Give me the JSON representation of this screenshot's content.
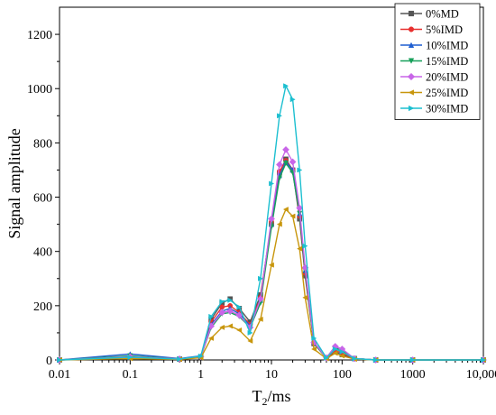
{
  "chart_data": {
    "type": "line",
    "xlabel": "T2/ms",
    "xlabel_parts": {
      "base": "T",
      "sub": "2",
      "rest": "/ms"
    },
    "ylabel": "Signal amplitude",
    "xscale": "log",
    "xlim": [
      0.01,
      10000
    ],
    "ylim": [
      0,
      1300
    ],
    "x_ticks": [
      {
        "value": 0.01,
        "label": "0.01"
      },
      {
        "value": 0.1,
        "label": "0.1"
      },
      {
        "value": 1,
        "label": "1"
      },
      {
        "value": 10,
        "label": "10"
      },
      {
        "value": 100,
        "label": "100"
      },
      {
        "value": 1000,
        "label": "1000"
      },
      {
        "value": 10000,
        "label": "10,000"
      }
    ],
    "y_ticks": [
      0,
      200,
      400,
      600,
      800,
      1000,
      1200
    ],
    "grid": false,
    "legend_position": "top-right",
    "x": [
      0.01,
      0.1,
      0.5,
      1,
      1.4,
      2,
      2.6,
      3.5,
      5,
      7,
      10,
      13,
      16,
      20,
      25,
      30,
      40,
      60,
      80,
      100,
      150,
      300,
      1000,
      10000
    ],
    "series": [
      {
        "name": "0%MD",
        "color": "#555555",
        "marker": "square",
        "values": [
          0,
          8,
          3,
          10,
          150,
          210,
          225,
          190,
          140,
          240,
          500,
          690,
          740,
          700,
          520,
          310,
          60,
          8,
          30,
          20,
          5,
          0,
          0,
          0
        ]
      },
      {
        "name": "5%IMD",
        "color": "#e8302f",
        "marker": "circle",
        "values": [
          0,
          10,
          3,
          12,
          140,
          195,
          200,
          175,
          130,
          230,
          510,
          695,
          735,
          700,
          530,
          320,
          60,
          8,
          35,
          25,
          5,
          0,
          0,
          0
        ]
      },
      {
        "name": "10%IMD",
        "color": "#1f5fd1",
        "marker": "triangle-up",
        "values": [
          0,
          22,
          5,
          15,
          130,
          180,
          190,
          170,
          125,
          220,
          500,
          680,
          730,
          700,
          540,
          330,
          65,
          8,
          50,
          40,
          5,
          0,
          0,
          0
        ]
      },
      {
        "name": "15%IMD",
        "color": "#17a05a",
        "marker": "triangle-down",
        "values": [
          0,
          15,
          4,
          12,
          120,
          170,
          175,
          160,
          120,
          210,
          490,
          670,
          725,
          690,
          540,
          330,
          60,
          8,
          45,
          35,
          5,
          0,
          0,
          0
        ]
      },
      {
        "name": "20%IMD",
        "color": "#c865e8",
        "marker": "diamond",
        "values": [
          0,
          12,
          4,
          12,
          125,
          175,
          180,
          165,
          120,
          225,
          520,
          720,
          775,
          730,
          560,
          340,
          65,
          8,
          50,
          40,
          5,
          0,
          0,
          0
        ]
      },
      {
        "name": "25%IMD",
        "color": "#c8960c",
        "marker": "triangle-left",
        "values": [
          0,
          5,
          2,
          8,
          80,
          120,
          125,
          110,
          70,
          150,
          350,
          500,
          555,
          530,
          410,
          230,
          40,
          5,
          25,
          15,
          3,
          0,
          0,
          0
        ]
      },
      {
        "name": "30%IMD",
        "color": "#1cbfd0",
        "marker": "triangle-right",
        "values": [
          0,
          10,
          3,
          14,
          160,
          215,
          220,
          195,
          100,
          300,
          650,
          900,
          1010,
          960,
          700,
          420,
          80,
          8,
          40,
          30,
          5,
          0,
          0,
          0
        ]
      }
    ]
  }
}
